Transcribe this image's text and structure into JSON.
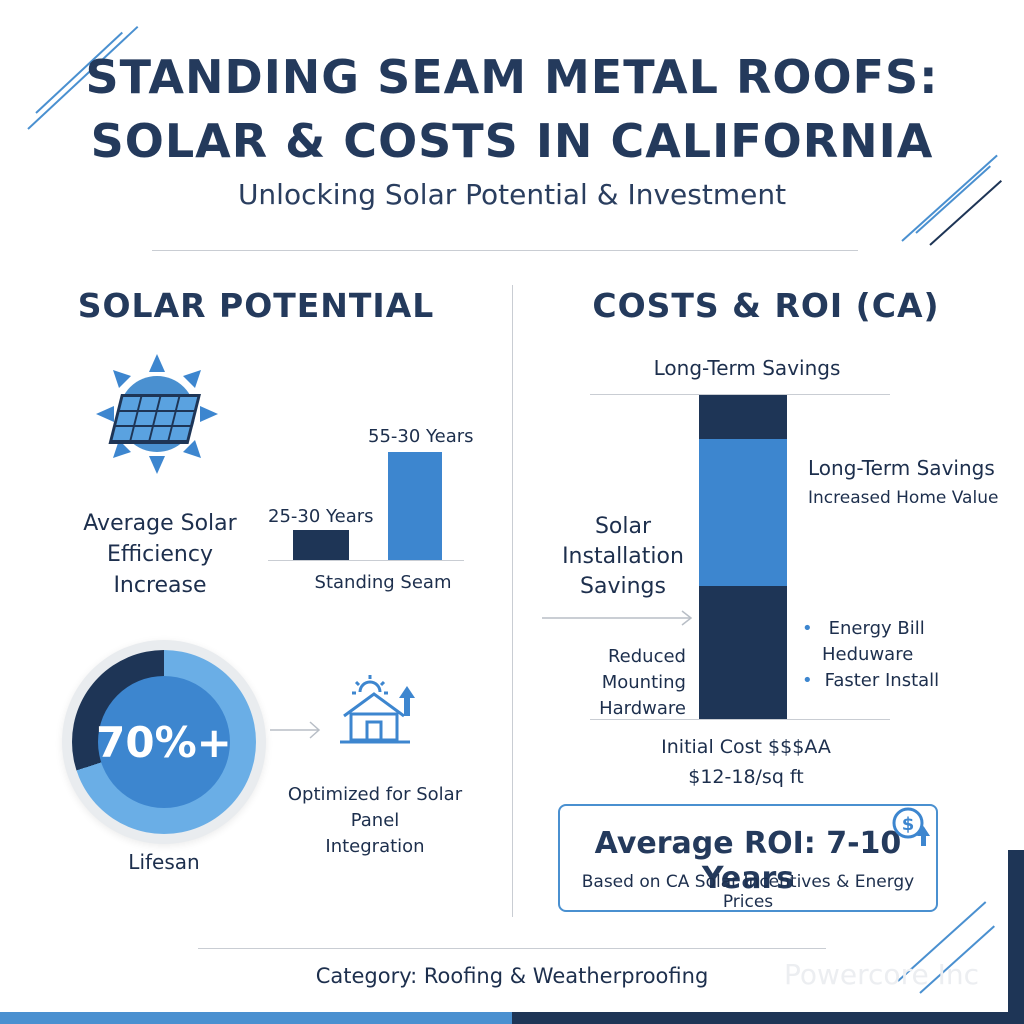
{
  "header": {
    "title_line1": "STANDING SEAM METAL ROOFS:",
    "title_line2": "SOLAR & COSTS IN CALIFORNIA",
    "subtitle": "Unlocking Solar Potential & Investment"
  },
  "left": {
    "section_title": "SOLAR POTENTIAL",
    "sun_icon": "sun-solar-panel-icon",
    "efficiency_label_line1": "Average Solar",
    "efficiency_label_line2": "Efficiency",
    "efficiency_label_line3": "Increase",
    "chart_data": {
      "type": "bar",
      "categories": [
        "",
        ""
      ],
      "values": [
        25,
        55
      ],
      "data_labels": [
        "25-30 Years",
        "55-30 Years"
      ],
      "xlabel": "Standing Seam",
      "colors": [
        "#1e3556",
        "#3d86cf"
      ]
    },
    "gauge": {
      "value_text": "70%+",
      "fraction": 0.7,
      "caption": "Lifesan"
    },
    "house_icon": "house-sun-arrow-icon",
    "integration_line1": "Optimized for Solar Panel",
    "integration_line2": "Integration"
  },
  "right": {
    "section_title": "COSTS & ROI (CA)",
    "top_label": "Long-Term Savings",
    "side_left_line1": "Solar",
    "side_left_line2": "Installation",
    "side_left_line3": "Savings",
    "mounting_line1": "Reduced Mounting",
    "mounting_line2": "Hardware",
    "savings_title": "Long-Term Savings",
    "savings_sub": "Increased Home Value",
    "bullets": [
      "Energy Bill",
      "Heduware",
      "Faster Install"
    ],
    "initial_cost_line1": "Initial Cost $$$AA",
    "initial_cost_line2": "$12-18/sq ft",
    "stack_segments": [
      {
        "name": "top",
        "fraction": 0.134,
        "color": "#1e3556"
      },
      {
        "name": "middle",
        "fraction": 0.455,
        "color": "#3d86cf"
      },
      {
        "name": "bottom",
        "fraction": 0.411,
        "color": "#1e3556"
      }
    ],
    "roi_title": "Average ROI: 7-10 Years",
    "roi_sub": "Based on CA Solar Incentives & Energy Prices",
    "roi_icon": "dollar-coin-arrow-icon"
  },
  "footer": {
    "category": "Category: Roofing & Weatherproofing",
    "watermark": "Powercore Inc"
  },
  "colors": {
    "navy": "#1e3556",
    "blue": "#3d86cf",
    "light_blue": "#4a90d0",
    "text": "#1d2f4d"
  }
}
